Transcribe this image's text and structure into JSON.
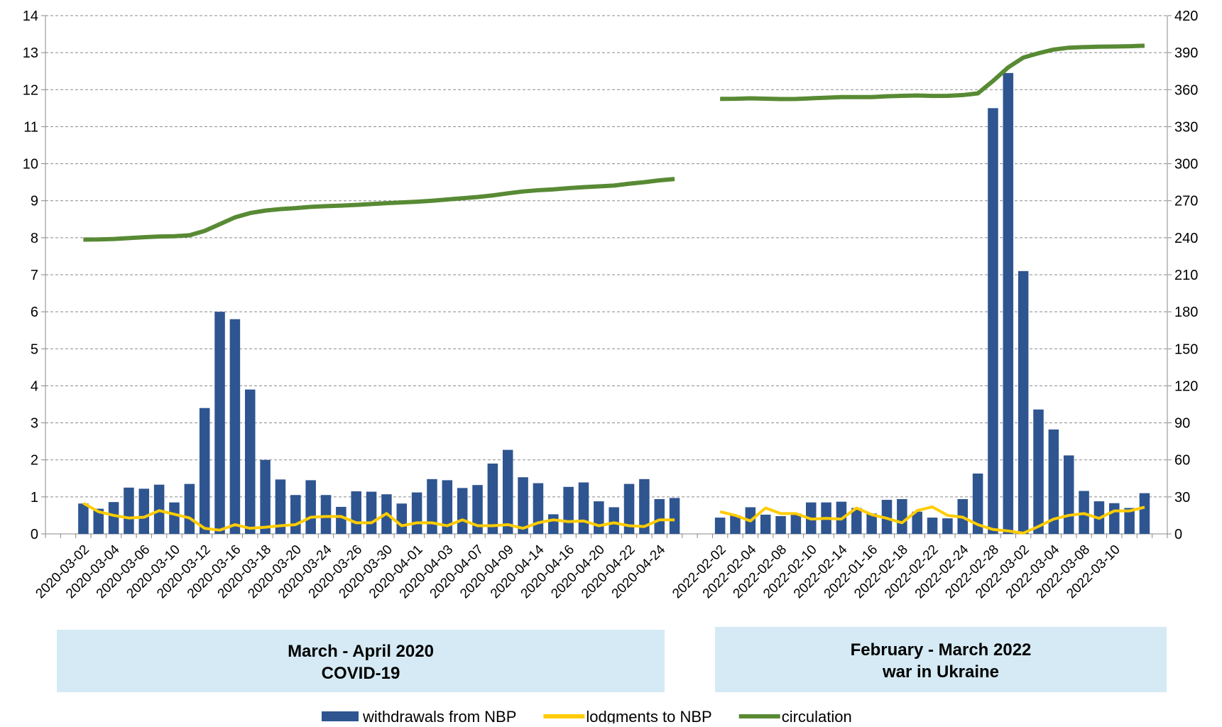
{
  "chart_data": {
    "type": "bar_line",
    "categories": [
      null,
      null,
      "2020-03-02",
      null,
      "2020-03-04",
      null,
      "2020-03-06",
      null,
      "2020-03-10",
      null,
      "2020-03-12",
      null,
      "2020-03-16",
      null,
      "2020-03-18",
      null,
      "2020-03-20",
      null,
      "2020-03-24",
      null,
      "2020-03-26",
      null,
      "2020-03-30",
      null,
      "2020-04-01",
      null,
      "2020-04-03",
      null,
      "2020-04-07",
      null,
      "2020-04-09",
      null,
      "2020-04-14",
      null,
      "2020-04-16",
      null,
      "2020-04-20",
      null,
      "2020-04-22",
      null,
      "2020-04-24",
      null,
      null,
      null,
      "2022-02-02",
      null,
      "2022-02-04",
      null,
      "2022-02-08",
      null,
      "2022-02-10",
      null,
      "2022-02-14",
      null,
      "2022-01-16",
      null,
      "2022-02-18",
      null,
      "2022-02-22",
      null,
      "2022-02-24",
      null,
      "2022-02-28",
      null,
      "2022-03-02",
      null,
      "2022-03-04",
      null,
      "2022-03-08",
      null,
      "2022-03-10",
      null,
      null,
      null
    ],
    "series": [
      {
        "name": "withdrawals from NBP",
        "type": "bar",
        "color": "#2e5590",
        "values": [
          null,
          null,
          0.82,
          0.68,
          0.86,
          1.25,
          1.22,
          1.33,
          0.85,
          1.35,
          3.4,
          6.0,
          5.8,
          3.9,
          2.0,
          1.47,
          1.05,
          1.45,
          1.05,
          0.73,
          1.15,
          1.14,
          1.07,
          0.82,
          1.12,
          1.48,
          1.45,
          1.24,
          1.32,
          1.9,
          2.27,
          1.53,
          1.37,
          0.53,
          1.27,
          1.39,
          0.88,
          0.72,
          1.35,
          1.48,
          0.94,
          0.97,
          null,
          null,
          0.44,
          0.5,
          0.72,
          0.52,
          0.48,
          0.55,
          0.85,
          0.85,
          0.87,
          0.7,
          0.55,
          0.92,
          0.94,
          0.6,
          0.44,
          0.42,
          0.94,
          1.63,
          11.5,
          12.45,
          7.1,
          3.36,
          2.82,
          2.12,
          1.16,
          0.88,
          0.83,
          0.7,
          1.1,
          null
        ]
      },
      {
        "name": "lodgments to NBP",
        "type": "line",
        "color": "#ffcc00",
        "values": [
          null,
          null,
          0.83,
          0.6,
          0.5,
          0.43,
          0.45,
          0.63,
          0.53,
          0.43,
          0.15,
          0.1,
          0.25,
          0.15,
          0.18,
          0.22,
          0.25,
          0.45,
          0.47,
          0.47,
          0.3,
          0.3,
          0.55,
          0.22,
          0.3,
          0.3,
          0.22,
          0.38,
          0.22,
          0.22,
          0.25,
          0.15,
          0.3,
          0.38,
          0.33,
          0.35,
          0.22,
          0.3,
          0.22,
          0.2,
          0.38,
          0.38,
          null,
          null,
          0.6,
          0.5,
          0.35,
          0.7,
          0.55,
          0.55,
          0.4,
          0.42,
          0.4,
          0.7,
          0.52,
          0.42,
          0.3,
          0.63,
          0.73,
          0.5,
          0.45,
          0.25,
          0.12,
          0.08,
          0.02,
          0.2,
          0.4,
          0.5,
          0.55,
          0.42,
          0.62,
          0.62,
          0.72,
          null
        ]
      },
      {
        "name": "circulation",
        "type": "line",
        "axis": "y2",
        "color": "#588a34",
        "values": [
          null,
          null,
          238.5,
          238.6,
          239,
          239.7,
          240.4,
          241,
          241.2,
          242,
          245.5,
          251,
          256.5,
          260,
          262,
          263.2,
          264,
          265,
          265.6,
          266,
          266.6,
          267.3,
          268,
          268.6,
          269.2,
          270,
          271,
          272,
          273,
          274.3,
          276,
          277.5,
          278.5,
          279.2,
          280.2,
          281,
          281.6,
          282.3,
          283.8,
          285,
          286.5,
          287.6,
          null,
          null,
          352.5,
          352.6,
          353,
          352.7,
          352.4,
          352.5,
          353,
          353.5,
          354,
          354,
          354,
          354.6,
          355,
          355.3,
          354.9,
          355,
          355.6,
          357,
          367,
          378,
          386,
          389.5,
          392.5,
          394,
          394.5,
          394.8,
          395,
          395.2,
          395.6,
          null
        ]
      }
    ],
    "ylim": [
      0,
      14
    ],
    "yticks": [
      0,
      1,
      2,
      3,
      4,
      5,
      6,
      7,
      8,
      9,
      10,
      11,
      12,
      13,
      14
    ],
    "y2lim": [
      0,
      420
    ],
    "y2ticks": [
      0,
      30,
      60,
      90,
      120,
      150,
      180,
      210,
      240,
      270,
      300,
      330,
      360,
      390,
      420
    ],
    "grid": true,
    "legend": "bottom",
    "annotations": [
      {
        "lines": [
          "March - April 2020",
          "COVID-19"
        ]
      },
      {
        "lines": [
          "February - March 2022",
          "war in Ukraine"
        ]
      }
    ]
  }
}
